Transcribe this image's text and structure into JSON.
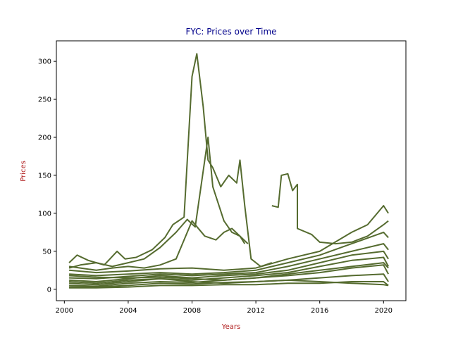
{
  "chart_data": {
    "type": "line",
    "title": "FYC: Prices over Time",
    "xlabel": "Years",
    "ylabel": "Prices",
    "xlim": [
      1999.5,
      2021.4
    ],
    "ylim": [
      -15,
      327
    ],
    "x_ticks": [
      "2000",
      "2004",
      "2008",
      "2012",
      "2016",
      "2020"
    ],
    "y_ticks": [
      "0",
      "50",
      "100",
      "150",
      "200",
      "250",
      "300"
    ],
    "grid": false,
    "legend": "none",
    "colors": {
      "line": "#556b2f",
      "title": "#00008b",
      "axis_label": "#b22222"
    },
    "series": [
      {
        "points": [
          [
            2000.3,
            35
          ],
          [
            2000.8,
            45
          ],
          [
            2001.5,
            38
          ],
          [
            2002.5,
            32
          ],
          [
            2003.3,
            50
          ],
          [
            2003.8,
            40
          ],
          [
            2004.5,
            42
          ],
          [
            2005.5,
            52
          ],
          [
            2006.3,
            68
          ],
          [
            2006.8,
            85
          ],
          [
            2007.5,
            95
          ],
          [
            2008.0,
            280
          ],
          [
            2008.3,
            310
          ],
          [
            2008.7,
            240
          ],
          [
            2009.0,
            170
          ],
          [
            2009.3,
            160
          ],
          [
            2009.8,
            135
          ],
          [
            2010.3,
            150
          ],
          [
            2010.8,
            140
          ],
          [
            2011.0,
            170
          ],
          [
            2011.3,
            110
          ],
          [
            2011.7,
            40
          ],
          [
            2012.3,
            30
          ],
          [
            2013.0,
            35
          ]
        ]
      },
      {
        "points": [
          [
            2000.3,
            28
          ],
          [
            2001.0,
            32
          ],
          [
            2002.0,
            35
          ],
          [
            2003.0,
            30
          ],
          [
            2004.0,
            35
          ],
          [
            2005.0,
            40
          ],
          [
            2006.0,
            55
          ],
          [
            2007.0,
            75
          ],
          [
            2007.7,
            92
          ],
          [
            2008.2,
            82
          ],
          [
            2009.0,
            200
          ],
          [
            2009.3,
            135
          ],
          [
            2010.0,
            90
          ],
          [
            2010.5,
            75
          ],
          [
            2011.0,
            70
          ],
          [
            2011.3,
            60
          ]
        ]
      },
      {
        "points": [
          [
            2000.3,
            30
          ],
          [
            2001.0,
            28
          ],
          [
            2002.0,
            25
          ],
          [
            2003.0,
            28
          ],
          [
            2004.0,
            30
          ],
          [
            2005.0,
            28
          ],
          [
            2006.0,
            32
          ],
          [
            2007.0,
            40
          ],
          [
            2008.0,
            90
          ],
          [
            2008.8,
            70
          ],
          [
            2009.5,
            65
          ],
          [
            2010.0,
            75
          ],
          [
            2010.5,
            80
          ],
          [
            2011.0,
            70
          ],
          [
            2011.5,
            60
          ]
        ]
      },
      {
        "points": [
          [
            2013.0,
            110
          ],
          [
            2013.4,
            108
          ],
          [
            2013.6,
            150
          ],
          [
            2014.0,
            152
          ],
          [
            2014.3,
            130
          ],
          [
            2014.6,
            138
          ],
          [
            2014.6,
            80
          ],
          [
            2015.5,
            72
          ],
          [
            2016.0,
            62
          ],
          [
            2017.0,
            60
          ],
          [
            2018.0,
            62
          ],
          [
            2019.0,
            70
          ],
          [
            2020.0,
            85
          ],
          [
            2020.3,
            90
          ]
        ]
      },
      {
        "points": [
          [
            2000.3,
            25
          ],
          [
            2002.0,
            22
          ],
          [
            2004.0,
            24
          ],
          [
            2006.0,
            27
          ],
          [
            2008.0,
            28
          ],
          [
            2010.0,
            25
          ],
          [
            2012.0,
            28
          ],
          [
            2014.0,
            40
          ],
          [
            2016.0,
            50
          ],
          [
            2018.0,
            75
          ],
          [
            2019.0,
            85
          ],
          [
            2020.0,
            110
          ],
          [
            2020.3,
            100
          ]
        ]
      },
      {
        "points": [
          [
            2000.3,
            20
          ],
          [
            2002.0,
            18
          ],
          [
            2004.0,
            20
          ],
          [
            2006.0,
            22
          ],
          [
            2008.0,
            20
          ],
          [
            2010.0,
            22
          ],
          [
            2012.0,
            25
          ],
          [
            2014.0,
            35
          ],
          [
            2016.0,
            45
          ],
          [
            2018.0,
            60
          ],
          [
            2020.0,
            75
          ],
          [
            2020.3,
            68
          ]
        ]
      },
      {
        "points": [
          [
            2000.3,
            15
          ],
          [
            2002.0,
            14
          ],
          [
            2004.0,
            17
          ],
          [
            2006.0,
            20
          ],
          [
            2008.0,
            18
          ],
          [
            2010.0,
            20
          ],
          [
            2012.0,
            22
          ],
          [
            2014.0,
            30
          ],
          [
            2016.0,
            40
          ],
          [
            2018.0,
            50
          ],
          [
            2020.0,
            60
          ],
          [
            2020.3,
            52
          ]
        ]
      },
      {
        "points": [
          [
            2000.3,
            12
          ],
          [
            2002.0,
            10
          ],
          [
            2004.0,
            14
          ],
          [
            2006.0,
            18
          ],
          [
            2008.0,
            15
          ],
          [
            2010.0,
            18
          ],
          [
            2012.0,
            20
          ],
          [
            2014.0,
            25
          ],
          [
            2016.0,
            35
          ],
          [
            2018.0,
            45
          ],
          [
            2020.0,
            50
          ],
          [
            2020.3,
            40
          ]
        ]
      },
      {
        "points": [
          [
            2000.3,
            8
          ],
          [
            2002.0,
            6
          ],
          [
            2004.0,
            10
          ],
          [
            2006.0,
            14
          ],
          [
            2008.0,
            12
          ],
          [
            2010.0,
            15
          ],
          [
            2012.0,
            18
          ],
          [
            2014.0,
            22
          ],
          [
            2016.0,
            30
          ],
          [
            2018.0,
            38
          ],
          [
            2020.0,
            42
          ],
          [
            2020.3,
            30
          ]
        ]
      },
      {
        "points": [
          [
            2000.3,
            5
          ],
          [
            2002.0,
            4
          ],
          [
            2004.0,
            8
          ],
          [
            2006.0,
            10
          ],
          [
            2008.0,
            9
          ],
          [
            2010.0,
            12
          ],
          [
            2012.0,
            15
          ],
          [
            2014.0,
            18
          ],
          [
            2016.0,
            22
          ],
          [
            2018.0,
            28
          ],
          [
            2020.0,
            32
          ],
          [
            2020.3,
            20
          ]
        ]
      },
      {
        "points": [
          [
            2000.3,
            3
          ],
          [
            2002.0,
            3
          ],
          [
            2004.0,
            5
          ],
          [
            2006.0,
            8
          ],
          [
            2008.0,
            7
          ],
          [
            2010.0,
            9
          ],
          [
            2012.0,
            10
          ],
          [
            2014.0,
            12
          ],
          [
            2016.0,
            15
          ],
          [
            2018.0,
            18
          ],
          [
            2020.0,
            20
          ],
          [
            2020.3,
            10
          ]
        ]
      },
      {
        "points": [
          [
            2000.3,
            2
          ],
          [
            2002.0,
            2
          ],
          [
            2004.0,
            3
          ],
          [
            2006.0,
            5
          ],
          [
            2008.0,
            5
          ],
          [
            2010.0,
            6
          ],
          [
            2012.0,
            6
          ],
          [
            2014.0,
            8
          ],
          [
            2016.0,
            8
          ],
          [
            2018.0,
            10
          ],
          [
            2020.0,
            10
          ],
          [
            2020.3,
            5
          ]
        ]
      },
      {
        "points": [
          [
            2000.3,
            18
          ],
          [
            2002.0,
            16
          ],
          [
            2004.0,
            15
          ],
          [
            2006.0,
            16
          ],
          [
            2008.0,
            14
          ],
          [
            2010.0,
            12
          ],
          [
            2012.0,
            15
          ],
          [
            2014.0,
            20
          ],
          [
            2016.0,
            25
          ],
          [
            2018.0,
            30
          ],
          [
            2020.0,
            35
          ],
          [
            2020.3,
            28
          ]
        ]
      },
      {
        "points": [
          [
            2000.3,
            10
          ],
          [
            2002.0,
            8
          ],
          [
            2004.0,
            12
          ],
          [
            2006.0,
            14
          ],
          [
            2008.0,
            10
          ],
          [
            2010.0,
            8
          ],
          [
            2012.0,
            10
          ],
          [
            2014.0,
            12
          ],
          [
            2016.0,
            10
          ],
          [
            2018.0,
            8
          ],
          [
            2020.0,
            6
          ],
          [
            2020.3,
            5
          ]
        ]
      }
    ]
  }
}
